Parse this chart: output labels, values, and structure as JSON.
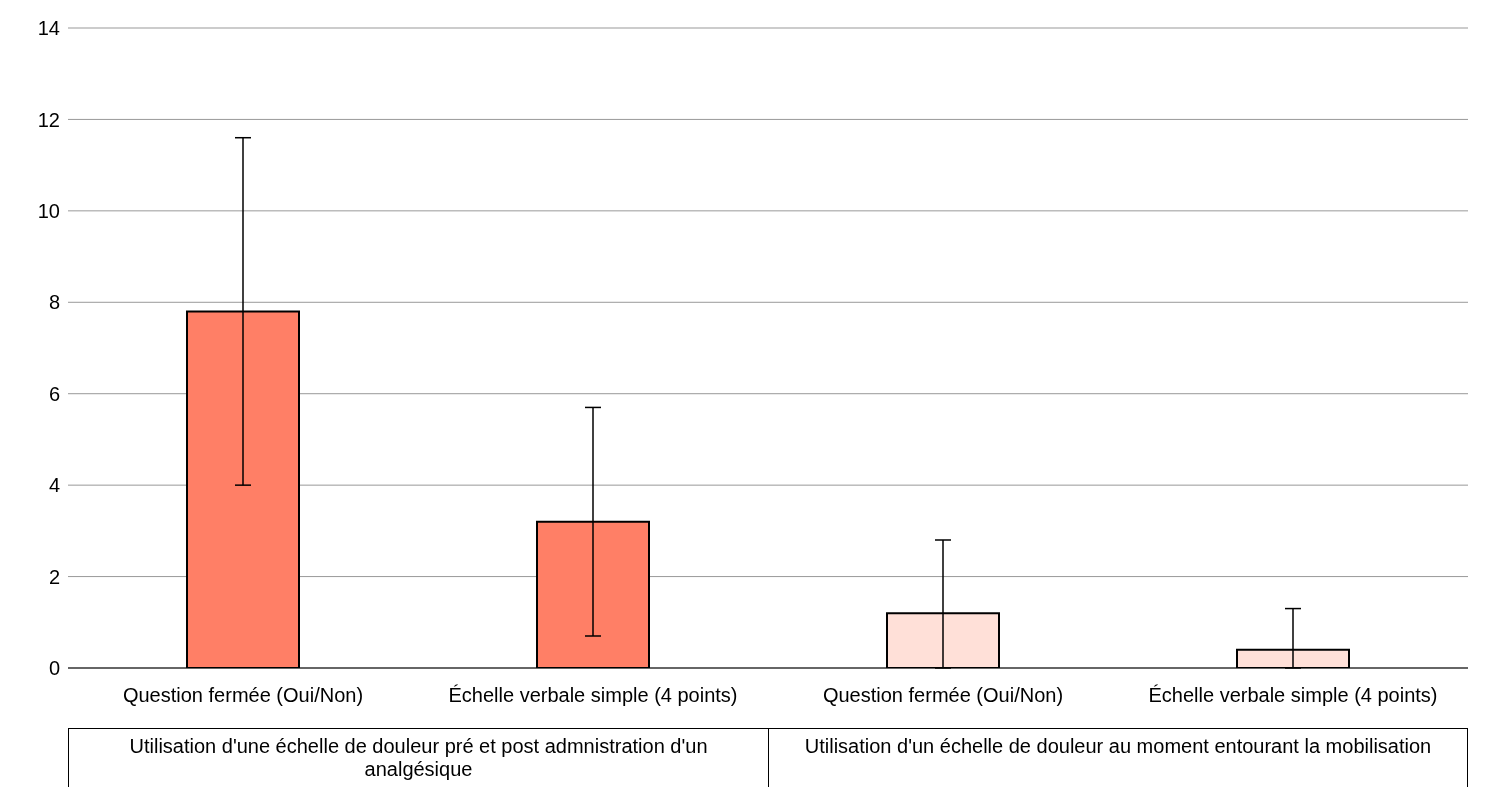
{
  "chart_data": {
    "type": "bar",
    "categories": [
      "Question fermée (Oui/Non)",
      "Échelle verbale simple (4 points)",
      "Question fermée (Oui/Non)",
      "Échelle verbale simple (4 points)"
    ],
    "values": [
      7.8,
      3.2,
      1.2,
      0.4
    ],
    "colors": [
      "#ff7f66",
      "#ff7f66",
      "#ffe0d8",
      "#ffe0d8"
    ],
    "errors": [
      [
        4.0,
        11.6
      ],
      [
        0.7,
        5.7
      ],
      [
        0,
        2.8
      ],
      [
        0,
        1.3
      ]
    ],
    "ylim": [
      0,
      14
    ],
    "yticks": [
      0,
      2,
      4,
      6,
      8,
      10,
      12,
      14
    ],
    "grid": "y",
    "annotations": [
      "Utilisation d'une échelle de douleur pré et post admnistration d'un analgésique",
      "Utilisation d'un échelle de douleur au moment entourant la mobilisation"
    ]
  }
}
